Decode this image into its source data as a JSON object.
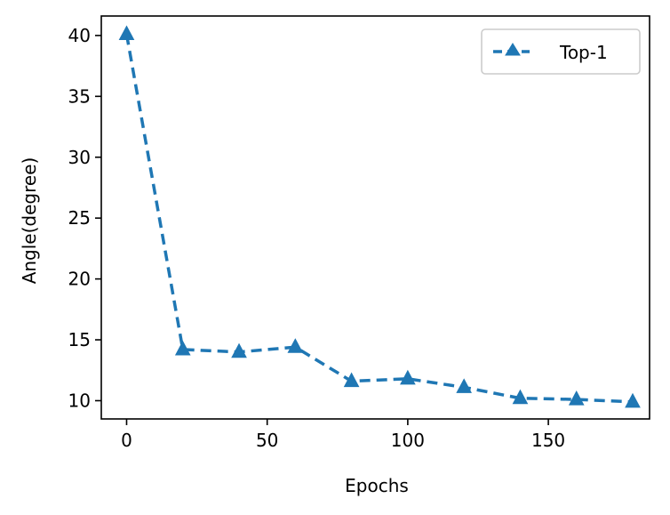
{
  "chart_data": {
    "type": "line",
    "title": "",
    "xlabel": "Epochs",
    "ylabel": "Angle(degree)",
    "xlim": [
      -9,
      186
    ],
    "ylim": [
      8.5,
      41.6
    ],
    "xticks": [
      0,
      50,
      100,
      150
    ],
    "yticks": [
      10,
      15,
      20,
      25,
      30,
      35,
      40
    ],
    "grid": false,
    "legend_position": "upper right",
    "series": [
      {
        "name": "Top-1",
        "color": "#1f77b4",
        "line_style": "dashed",
        "marker": "triangle-up",
        "x": [
          0,
          20,
          40,
          60,
          80,
          100,
          120,
          140,
          160,
          180
        ],
        "y": [
          40.1,
          14.2,
          14.0,
          14.4,
          11.6,
          11.8,
          11.1,
          10.2,
          10.1,
          9.9
        ]
      }
    ]
  }
}
